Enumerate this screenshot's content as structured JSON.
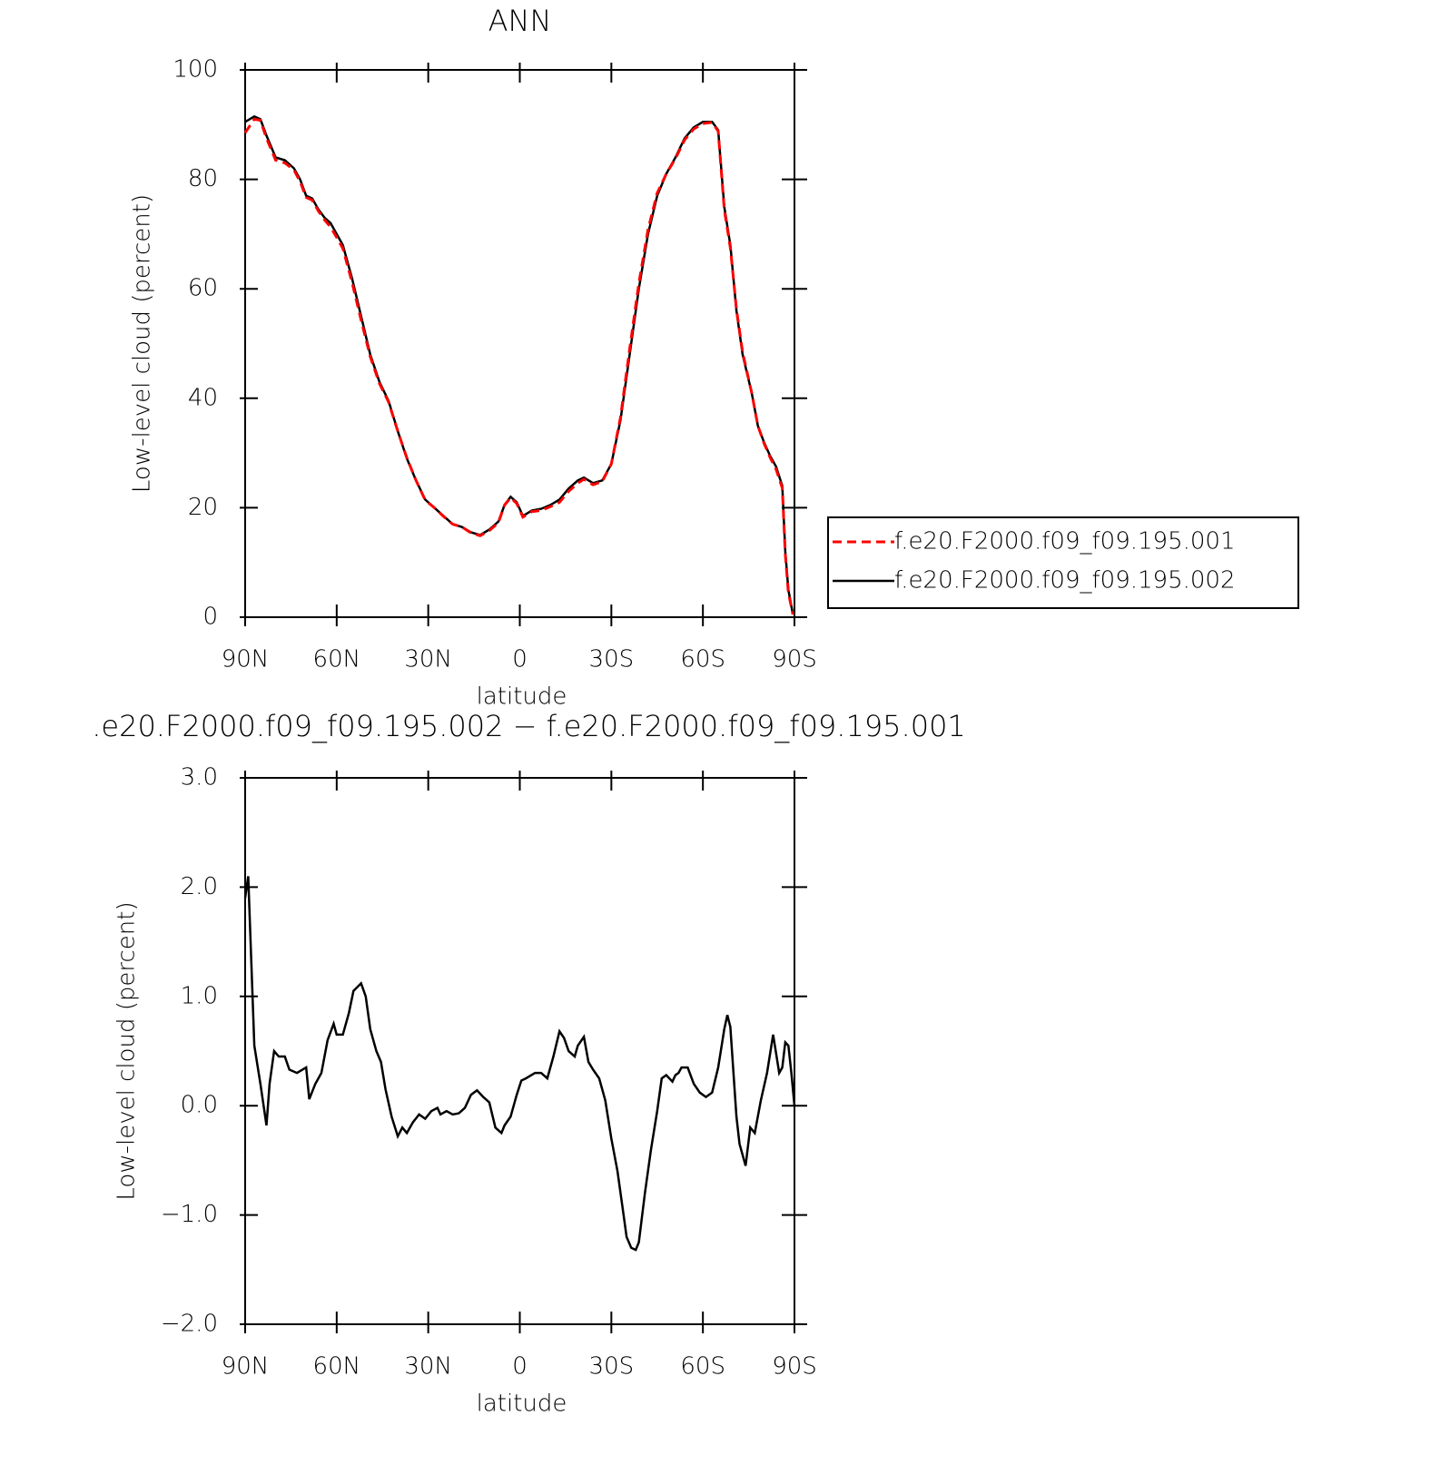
{
  "chart_data": [
    {
      "type": "line",
      "title": "ANN",
      "xlabel": "latitude",
      "ylabel": "Low-level cloud (percent)",
      "xlim": [
        90,
        -90
      ],
      "ylim": [
        0,
        100
      ],
      "xticks": [
        {
          "value": 90,
          "label": "90N"
        },
        {
          "value": 60,
          "label": "60N"
        },
        {
          "value": 30,
          "label": "30N"
        },
        0,
        {
          "value": -30,
          "label": "30S"
        },
        {
          "value": -60,
          "label": "60S"
        },
        {
          "value": -90,
          "label": "90S"
        }
      ],
      "yticks": [
        0,
        20,
        40,
        60,
        80,
        100
      ],
      "legend_loc": "right",
      "x": [
        90,
        87,
        85,
        83,
        80,
        77,
        74,
        72,
        70,
        68,
        66,
        64,
        62,
        60,
        58,
        55,
        52,
        49,
        46,
        43,
        40,
        37,
        34,
        31,
        28,
        25,
        22,
        19,
        16,
        13,
        10,
        7,
        5,
        3,
        1,
        -1,
        -4,
        -7,
        -10,
        -13,
        -16,
        -19,
        -21,
        -24,
        -27,
        -30,
        -33,
        -36,
        -39,
        -42,
        -45,
        -48,
        -51,
        -54,
        -57,
        -60,
        -63,
        -65,
        -67,
        -69,
        -71,
        -73,
        -76,
        -78,
        -80,
        -82,
        -84,
        -86,
        -87,
        -88,
        -89.5
      ],
      "series": [
        {
          "name": "f.e20.F2000.f09_f09.195.001",
          "color": "#ff0000",
          "linestyle": "dashed",
          "values": [
            88.5,
            91,
            90.8,
            87.5,
            83.5,
            83,
            81.7,
            79.6,
            76.7,
            76.2,
            74.2,
            72.6,
            71.3,
            69.4,
            67.4,
            61.3,
            54.3,
            47.6,
            42.7,
            39.3,
            34,
            29.1,
            25,
            21.4,
            20,
            18.4,
            17,
            16.5,
            15.4,
            14.9,
            15.8,
            17.3,
            20.5,
            21.8,
            20.8,
            18.3,
            19.3,
            19.5,
            20.2,
            21,
            23,
            24.5,
            25.2,
            24.2,
            24.8,
            28,
            36.5,
            49,
            61,
            70.8,
            77.5,
            81,
            83.8,
            87.2,
            89.2,
            90.2,
            90.4,
            88.8,
            74.5,
            67.5,
            56.3,
            48.4,
            41,
            35,
            31.8,
            29.2,
            27,
            23.6,
            11.5,
            4.5,
            0.5
          ]
        },
        {
          "name": "f.e20.F2000.f09_f09.195.002",
          "color": "#000000",
          "linestyle": "solid",
          "values": [
            90.5,
            91.5,
            91,
            88,
            84,
            83.5,
            82,
            80,
            77,
            76.5,
            74.5,
            73,
            72,
            70,
            68,
            62,
            55,
            48,
            43,
            39.5,
            34,
            29,
            25,
            21.5,
            20,
            18.5,
            17,
            16.5,
            15.5,
            15,
            16,
            17.5,
            20.5,
            22,
            21,
            18.5,
            19.5,
            19.8,
            20.5,
            21.5,
            23.5,
            25,
            25.5,
            24.5,
            25,
            28,
            36,
            48,
            60,
            70,
            77,
            81,
            84,
            87.5,
            89.5,
            90.5,
            90.5,
            89,
            75,
            68,
            56,
            48,
            41,
            35,
            32,
            29.5,
            27.5,
            24,
            12,
            5,
            0.5
          ]
        }
      ]
    },
    {
      "type": "line",
      "title": ".e20.F2000.f09_f09.195.002 − f.e20.F2000.f09_f09.195.001",
      "xlabel": "latitude",
      "ylabel": "Low-level cloud (percent)",
      "xlim": [
        90,
        -90
      ],
      "ylim": [
        -2,
        3
      ],
      "xticks": [
        {
          "value": 90,
          "label": "90N"
        },
        {
          "value": 60,
          "label": "60N"
        },
        {
          "value": 30,
          "label": "30N"
        },
        0,
        {
          "value": -30,
          "label": "30S"
        },
        {
          "value": -60,
          "label": "60S"
        },
        {
          "value": -90,
          "label": "90S"
        }
      ],
      "yticks": [
        {
          "value": -2,
          "label": "−2.0"
        },
        {
          "value": -1,
          "label": "−1.0"
        },
        {
          "value": 0,
          "label": "0.0"
        },
        {
          "value": 1,
          "label": "1.0"
        },
        {
          "value": 2,
          "label": "2.0"
        },
        {
          "value": 3,
          "label": "3.0"
        }
      ],
      "x": [
        90,
        89,
        87,
        85,
        83,
        82,
        80.5,
        79,
        77,
        75.5,
        73,
        70,
        69,
        67,
        65,
        63,
        61,
        60,
        58,
        56,
        54.5,
        52,
        50.5,
        49,
        47,
        45.5,
        44,
        42,
        40,
        38.5,
        37,
        35,
        33,
        31,
        29,
        27,
        26,
        24,
        22,
        20,
        18,
        16,
        14,
        12,
        10,
        8,
        6,
        5,
        3,
        1,
        -0.5,
        -2,
        -5,
        -7,
        -9,
        -11,
        -13,
        -14.5,
        -16,
        -18,
        -19,
        -21,
        -22.5,
        -24,
        -26,
        -28,
        -30,
        -32,
        -34,
        -35,
        -36.5,
        -38,
        -39,
        -41,
        -43,
        -45,
        -46.5,
        -48,
        -50,
        -51,
        -52,
        -53,
        -55,
        -57,
        -59,
        -61,
        -63,
        -65,
        -67,
        -68,
        -69,
        -71,
        -72,
        -74,
        -75.5,
        -77,
        -79,
        -81,
        -83,
        -85,
        -86,
        -87,
        -88,
        -89,
        -90
      ],
      "series": [
        {
          "color": "#000000",
          "linestyle": "solid",
          "values": [
            1.9,
            2.1,
            0.55,
            0.2,
            -0.18,
            0.2,
            0.5,
            0.45,
            0.45,
            0.33,
            0.3,
            0.35,
            0.06,
            0.2,
            0.3,
            0.6,
            0.75,
            0.65,
            0.65,
            0.85,
            1.05,
            1.12,
            1.0,
            0.7,
            0.5,
            0.4,
            0.15,
            -0.1,
            -0.28,
            -0.2,
            -0.25,
            -0.15,
            -0.08,
            -0.12,
            -0.05,
            -0.02,
            -0.08,
            -0.05,
            -0.08,
            -0.07,
            -0.02,
            0.1,
            0.14,
            0.08,
            0.03,
            -0.2,
            -0.25,
            -0.18,
            -0.1,
            0.1,
            0.23,
            0.25,
            0.3,
            0.3,
            0.25,
            0.45,
            0.68,
            0.62,
            0.5,
            0.45,
            0.55,
            0.63,
            0.4,
            0.33,
            0.25,
            0.05,
            -0.3,
            -0.6,
            -1.0,
            -1.2,
            -1.3,
            -1.32,
            -1.25,
            -0.8,
            -0.4,
            -0.05,
            0.25,
            0.28,
            0.22,
            0.28,
            0.3,
            0.35,
            0.35,
            0.2,
            0.12,
            0.08,
            0.12,
            0.35,
            0.7,
            0.83,
            0.72,
            -0.1,
            -0.35,
            -0.55,
            -0.2,
            -0.25,
            0.05,
            0.3,
            0.65,
            0.3,
            0.35,
            0.58,
            0.55,
            0.3,
            0.0
          ]
        }
      ]
    }
  ]
}
